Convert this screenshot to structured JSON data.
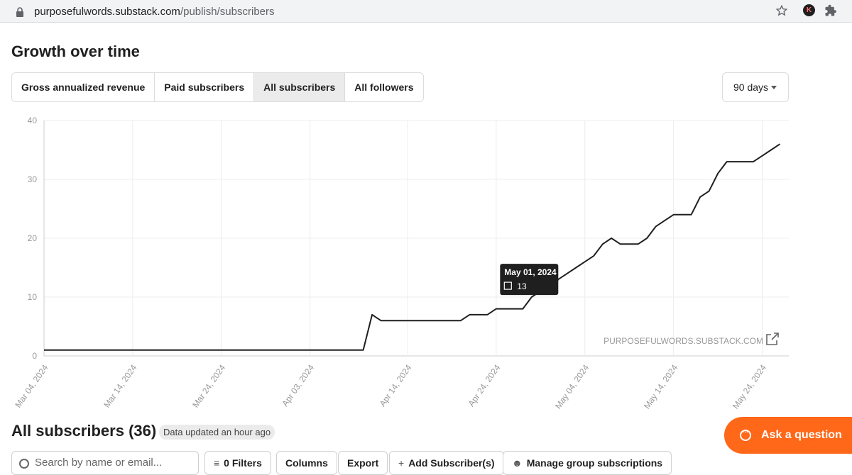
{
  "browser": {
    "url_domain": "purposefulwords.substack.com",
    "url_path": "/publish/subscribers",
    "profile_initial": "K"
  },
  "growth": {
    "title": "Growth over time",
    "tabs": [
      {
        "label": "Gross annualized revenue",
        "active": false
      },
      {
        "label": "Paid subscribers",
        "active": false
      },
      {
        "label": "All subscribers",
        "active": true
      },
      {
        "label": "All followers",
        "active": false
      }
    ],
    "range": "90 days"
  },
  "chart_data": {
    "type": "line",
    "series": [
      {
        "values": [
          [
            "2024-03-04",
            1
          ],
          [
            "2024-04-09",
            1
          ],
          [
            "2024-04-10",
            7
          ],
          [
            "2024-04-11",
            6
          ],
          [
            "2024-04-20",
            6
          ],
          [
            "2024-04-21",
            7
          ],
          [
            "2024-04-23",
            7
          ],
          [
            "2024-04-24",
            8
          ],
          [
            "2024-04-27",
            8
          ],
          [
            "2024-04-28",
            10
          ],
          [
            "2024-04-29",
            11
          ],
          [
            "2024-04-30",
            11
          ],
          [
            "2024-05-01",
            13
          ],
          [
            "2024-05-02",
            14
          ],
          [
            "2024-05-03",
            15
          ],
          [
            "2024-05-04",
            16
          ],
          [
            "2024-05-05",
            17
          ],
          [
            "2024-05-06",
            19
          ],
          [
            "2024-05-07",
            20
          ],
          [
            "2024-05-08",
            19
          ],
          [
            "2024-05-10",
            19
          ],
          [
            "2024-05-11",
            20
          ],
          [
            "2024-05-12",
            22
          ],
          [
            "2024-05-13",
            23
          ],
          [
            "2024-05-14",
            24
          ],
          [
            "2024-05-16",
            24
          ],
          [
            "2024-05-17",
            27
          ],
          [
            "2024-05-18",
            28
          ],
          [
            "2024-05-19",
            31
          ],
          [
            "2024-05-20",
            33
          ],
          [
            "2024-05-23",
            33
          ],
          [
            "2024-05-24",
            34
          ],
          [
            "2024-05-25",
            35
          ],
          [
            "2024-05-26",
            36
          ]
        ]
      }
    ],
    "x_range": [
      "2024-03-04",
      "2024-05-27"
    ],
    "xticks": [
      {
        "date": "2024-03-04",
        "label": "Mar 04, 2024"
      },
      {
        "date": "2024-03-14",
        "label": "Mar 14, 2024"
      },
      {
        "date": "2024-03-24",
        "label": "Mar 24, 2024"
      },
      {
        "date": "2024-04-03",
        "label": "Apr 03, 2024"
      },
      {
        "date": "2024-04-14",
        "label": "Apr 14, 2024"
      },
      {
        "date": "2024-04-24",
        "label": "Apr 24, 2024"
      },
      {
        "date": "2024-05-04",
        "label": "May 04, 2024"
      },
      {
        "date": "2024-05-14",
        "label": "May 14, 2024"
      },
      {
        "date": "2024-05-24",
        "label": "May 24, 2024"
      }
    ],
    "yticks": [
      0,
      10,
      20,
      30,
      40
    ],
    "ylim": [
      0,
      40
    ],
    "grid": true,
    "tooltip": {
      "date": "2024-05-01",
      "title": "May 01, 2024",
      "value": "13"
    },
    "watermark": "PURPOSEFULWORDS.SUBSTACK.COM",
    "colors": {
      "line": "#1f1f1f",
      "grid": "#ececec",
      "axis": "#cccccc",
      "tick_text": "#999999",
      "tooltip_bg": "#1f1f1f"
    }
  },
  "subscribers": {
    "title": "All subscribers (36)",
    "updated": "Data updated an hour ago",
    "search_placeholder": "Search by name or email...",
    "filters_label": "0 Filters",
    "columns_label": "Columns",
    "export_label": "Export",
    "add_label": "Add Subscriber(s)",
    "manage_label": "Manage group subscriptions"
  },
  "ask": {
    "label": "Ask a question"
  },
  "colors": {
    "accent": "#ff6719"
  }
}
